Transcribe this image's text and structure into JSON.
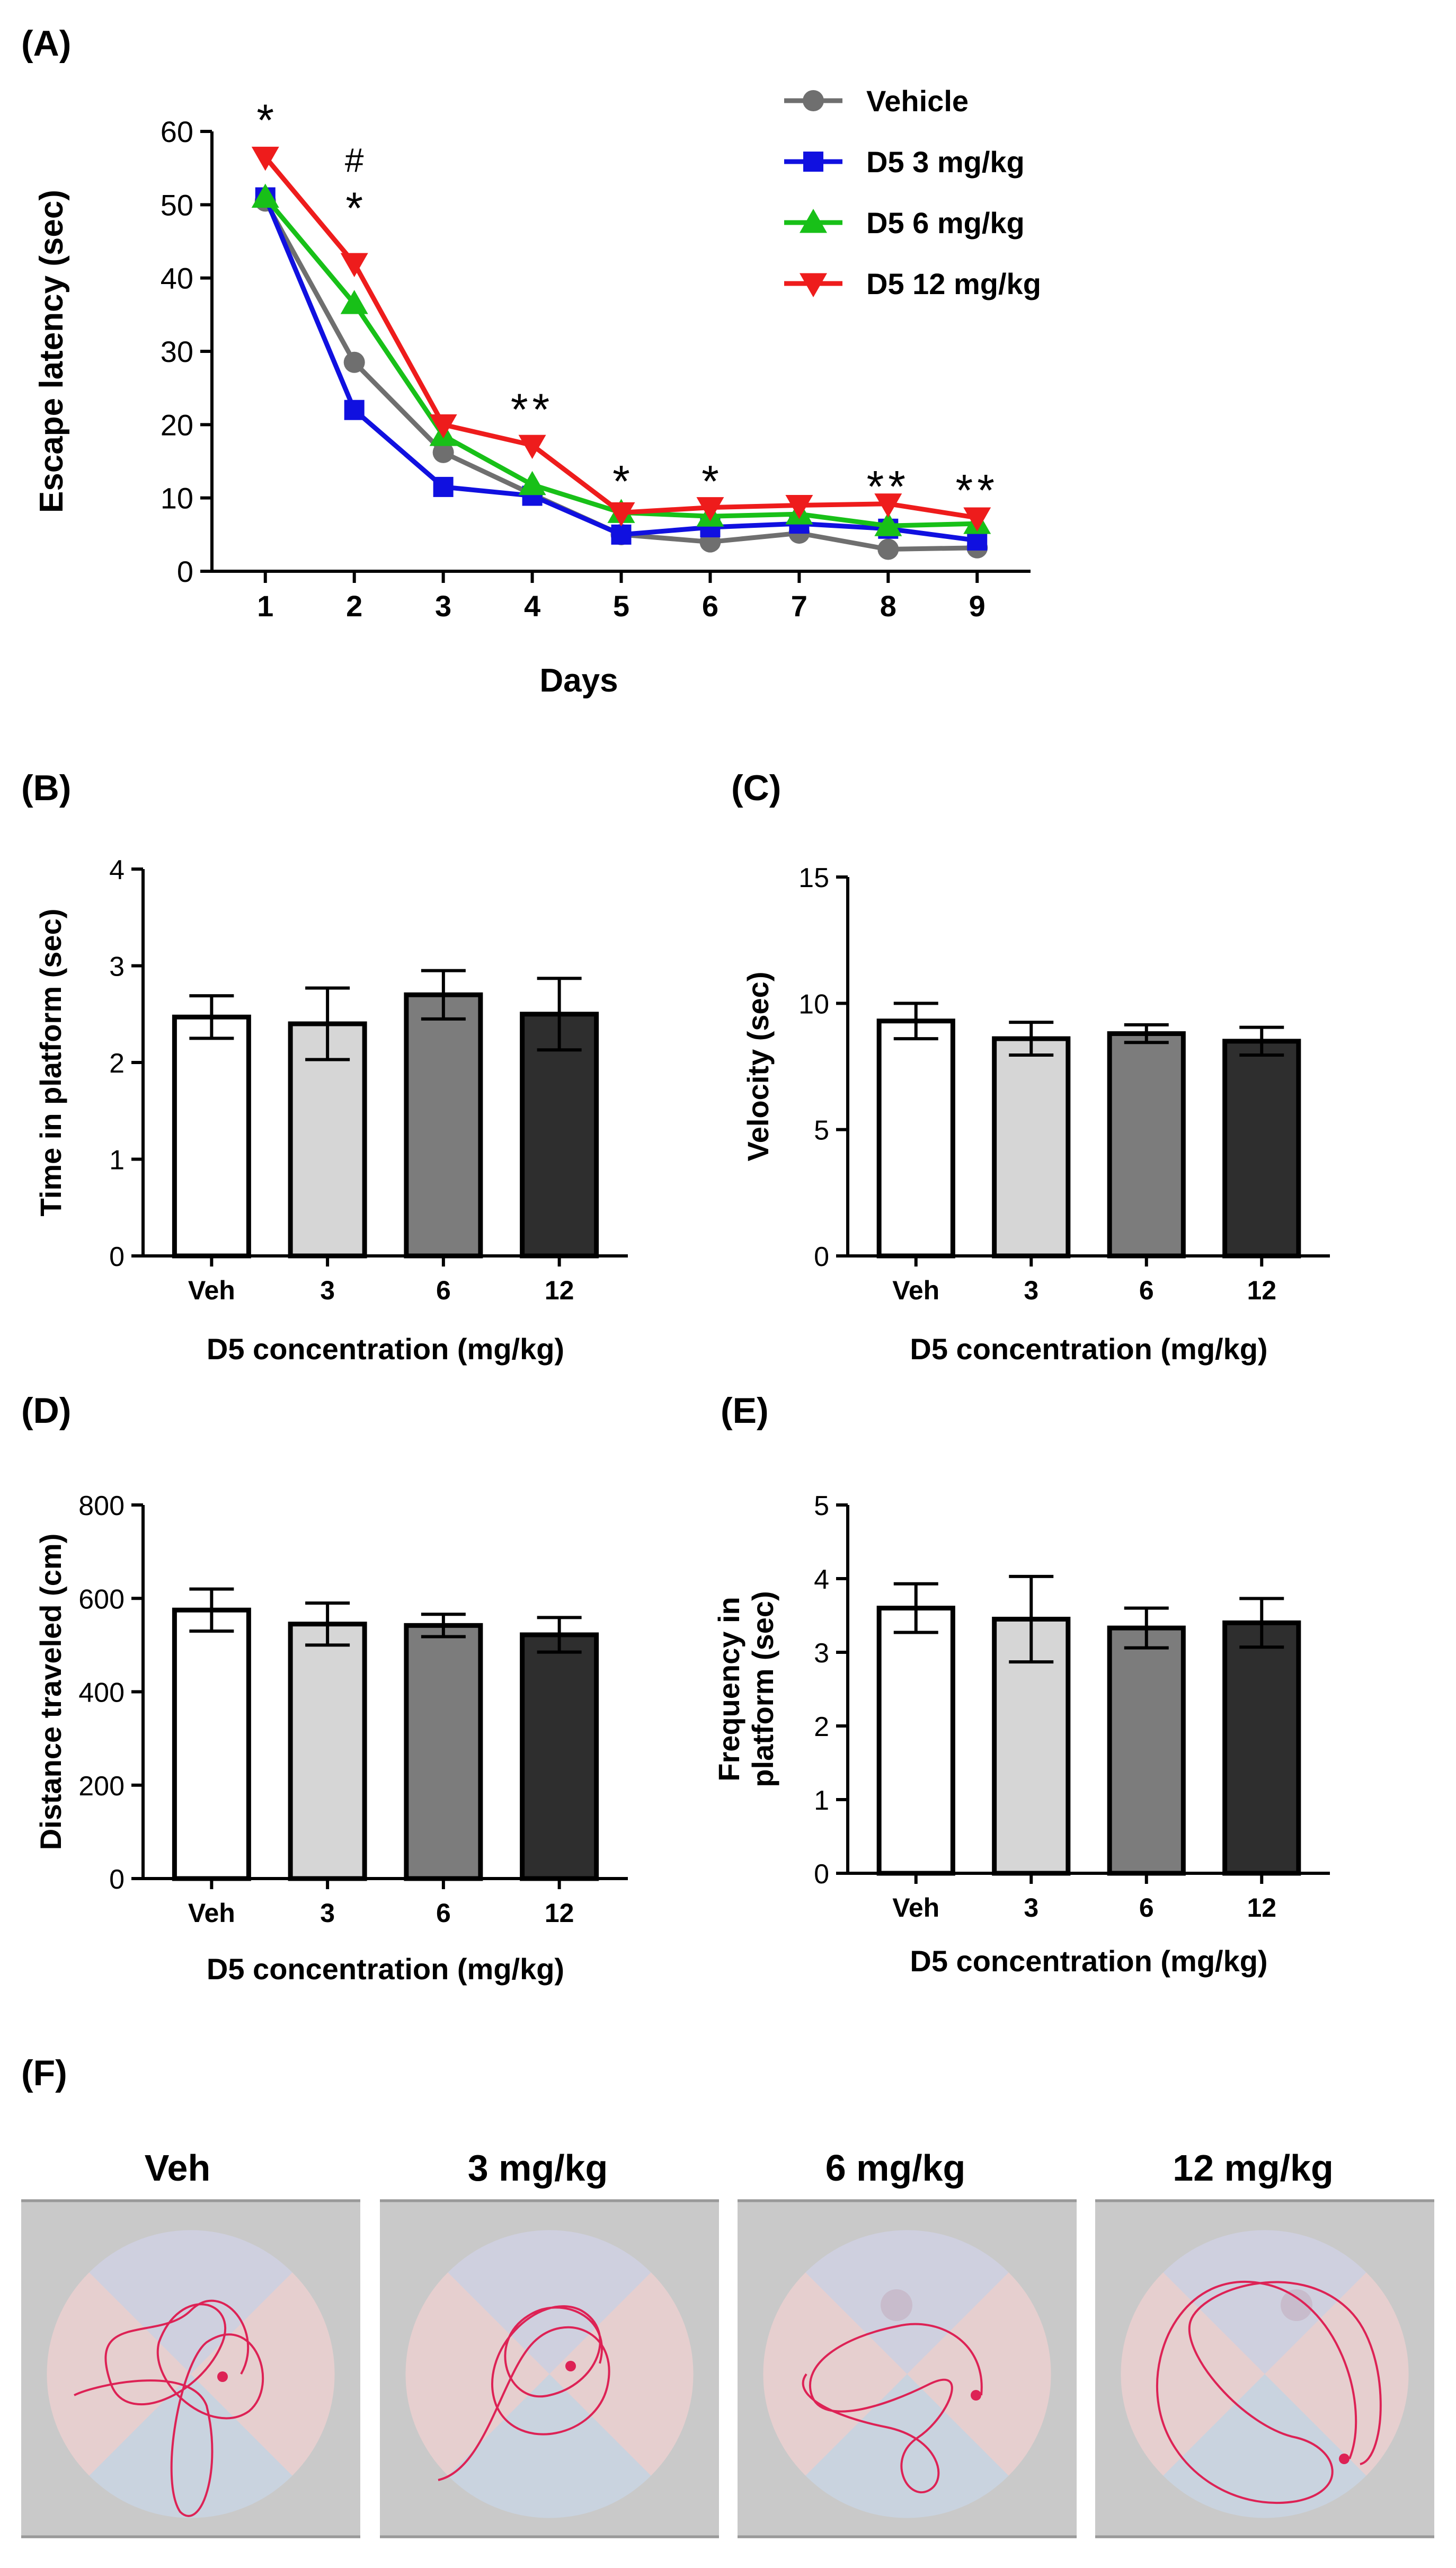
{
  "panel_labels": {
    "a": "(A)",
    "b": "(B)",
    "c": "(C)",
    "d": "(D)",
    "e": "(E)",
    "f": "(F)"
  },
  "colors": {
    "vehicle": "#6f6f6f",
    "d5_3": "#1010e0",
    "d5_6": "#18c018",
    "d5_12": "#ee1c1c",
    "axis": "#000000",
    "track": "#dd2255",
    "pool": "#c9c9c9"
  },
  "chart_data": [
    {
      "id": "A",
      "type": "line",
      "title": "",
      "xlabel": "Days",
      "ylabel": "Escape latency (sec)",
      "x": [
        1,
        2,
        3,
        4,
        5,
        6,
        7,
        8,
        9
      ],
      "xlim": [
        0.4,
        9.6
      ],
      "ylim": [
        0,
        60
      ],
      "yticks": [
        0,
        10,
        20,
        30,
        40,
        50,
        60
      ],
      "series": [
        {
          "name": "Vehicle",
          "color_key": "vehicle",
          "marker": "circle",
          "values": [
            50.5,
            28.5,
            16.2,
            10.5,
            5.0,
            4.0,
            5.2,
            3.0,
            3.2
          ]
        },
        {
          "name": "D5 3 mg/kg",
          "color_key": "d5_3",
          "marker": "square",
          "values": [
            51.0,
            22.0,
            11.5,
            10.3,
            5.0,
            6.0,
            6.5,
            5.8,
            4.2
          ]
        },
        {
          "name": "D5 6 mg/kg",
          "color_key": "d5_6",
          "marker": "triangle-up",
          "values": [
            51.0,
            36.5,
            18.5,
            11.8,
            8.0,
            7.5,
            7.8,
            6.2,
            6.5
          ]
        },
        {
          "name": "D5 12 mg/kg",
          "color_key": "d5_12",
          "marker": "triangle-down",
          "values": [
            56.5,
            42.0,
            20.0,
            17.2,
            8.0,
            8.7,
            9.0,
            9.2,
            7.3
          ]
        }
      ],
      "annotations": [
        {
          "x": 1,
          "text": "*",
          "y": 61.5
        },
        {
          "x": 2,
          "text": "#",
          "y": 56.5
        },
        {
          "x": 2,
          "text": "*",
          "y": 49.5
        },
        {
          "x": 4,
          "text": "**",
          "y": 22.0
        },
        {
          "x": 5,
          "text": "*",
          "y": 12.2
        },
        {
          "x": 6,
          "text": "*",
          "y": 12.2
        },
        {
          "x": 8,
          "text": "**",
          "y": 11.5
        },
        {
          "x": 9,
          "text": "**",
          "y": 11.0
        }
      ],
      "legend": "top-right"
    },
    {
      "id": "B",
      "type": "bar",
      "categories": [
        "Veh",
        "3",
        "6",
        "12"
      ],
      "values": [
        2.47,
        2.4,
        2.7,
        2.5
      ],
      "errors": [
        0.22,
        0.37,
        0.25,
        0.37
      ],
      "ylabel": "Time in platform (sec)",
      "xlabel": "D5 concentration (mg/kg)",
      "ylim": [
        0,
        4
      ],
      "yticks": [
        0,
        1,
        2,
        3,
        4
      ]
    },
    {
      "id": "C",
      "type": "bar",
      "categories": [
        "Veh",
        "3",
        "6",
        "12"
      ],
      "values": [
        9.3,
        8.6,
        8.8,
        8.5
      ],
      "errors": [
        0.7,
        0.65,
        0.35,
        0.55
      ],
      "ylabel": "Velocity (sec)",
      "xlabel": "D5 concentration (mg/kg)",
      "ylim": [
        0,
        15
      ],
      "yticks": [
        0,
        5,
        10,
        15
      ]
    },
    {
      "id": "D",
      "type": "bar",
      "categories": [
        "Veh",
        "3",
        "6",
        "12"
      ],
      "values": [
        575,
        545,
        542,
        522
      ],
      "errors": [
        45,
        45,
        24,
        37
      ],
      "ylabel": "Distance traveled (cm)",
      "xlabel": "D5 concentration (mg/kg)",
      "ylim": [
        0,
        800
      ],
      "yticks": [
        0,
        200,
        400,
        600,
        800
      ]
    },
    {
      "id": "E",
      "type": "bar",
      "categories": [
        "Veh",
        "3",
        "6",
        "12"
      ],
      "values": [
        3.6,
        3.45,
        3.33,
        3.4
      ],
      "errors": [
        0.33,
        0.58,
        0.27,
        0.33
      ],
      "ylabel": "Frequency in platform (sec)",
      "ylabel_lines": [
        "Frequency in",
        "platform (sec)"
      ],
      "xlabel": "D5 concentration (mg/kg)",
      "ylim": [
        0,
        5
      ],
      "yticks": [
        0,
        1,
        2,
        3,
        4,
        5
      ]
    }
  ],
  "bar_fills": [
    "#ffffff",
    "#d6d6d6",
    "#7c7c7c",
    "#2e2e2e"
  ],
  "tracks": {
    "titles": [
      "Veh",
      "3 mg/kg",
      "6 mg/kg",
      "12 mg/kg"
    ]
  }
}
